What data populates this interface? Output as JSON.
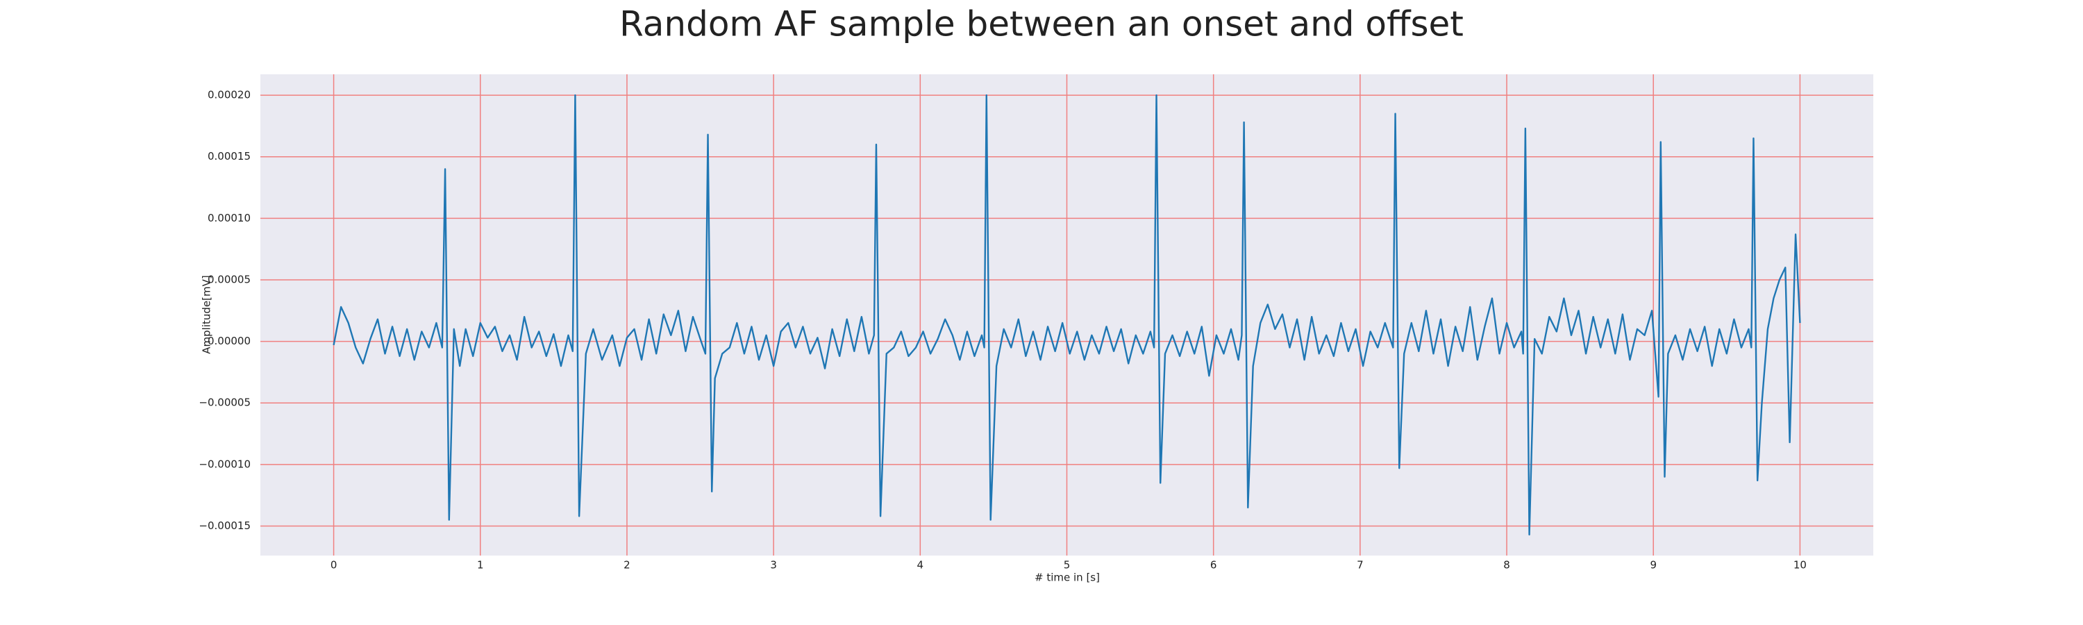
{
  "chart_data": {
    "type": "line",
    "title": "Random AF sample between an onset and offset",
    "xlabel": "# time in [s]",
    "ylabel": "Amplitude[mV]",
    "color": "#1f77b4",
    "grid": true,
    "grid_color": "#f08080",
    "xlim": [
      -0.5,
      10.5
    ],
    "ylim": [
      -0.000174,
      0.000217
    ],
    "xticks": [
      0,
      1,
      2,
      3,
      4,
      5,
      6,
      7,
      8,
      9,
      10
    ],
    "yticks": [
      {
        "value": -0.00015,
        "label": "−0.00015"
      },
      {
        "value": -0.0001,
        "label": "−0.00010"
      },
      {
        "value": -5e-05,
        "label": "−0.00005"
      },
      {
        "value": 0,
        "label": "0.00000"
      },
      {
        "value": 5e-05,
        "label": "0.00005"
      },
      {
        "value": 0.0001,
        "label": "0.00010"
      },
      {
        "value": 0.00015,
        "label": "0.00015"
      },
      {
        "value": 0.0002,
        "label": "0.00020"
      }
    ],
    "x": [
      0.0,
      0.05,
      0.1,
      0.15,
      0.2,
      0.25,
      0.3,
      0.35,
      0.4,
      0.45,
      0.5,
      0.55,
      0.6,
      0.65,
      0.7,
      0.74,
      0.76,
      0.787,
      0.82,
      0.86,
      0.9,
      0.95,
      1.0,
      1.05,
      1.1,
      1.15,
      1.2,
      1.25,
      1.3,
      1.35,
      1.4,
      1.45,
      1.5,
      1.55,
      1.6,
      1.63,
      1.647,
      1.674,
      1.72,
      1.77,
      1.83,
      1.9,
      1.95,
      2.0,
      2.05,
      2.1,
      2.15,
      2.2,
      2.25,
      2.3,
      2.35,
      2.4,
      2.45,
      2.5,
      2.535,
      2.552,
      2.579,
      2.6,
      2.65,
      2.7,
      2.75,
      2.8,
      2.85,
      2.9,
      2.95,
      3.0,
      3.05,
      3.1,
      3.15,
      3.2,
      3.25,
      3.3,
      3.35,
      3.4,
      3.45,
      3.5,
      3.55,
      3.6,
      3.65,
      3.685,
      3.7,
      3.729,
      3.77,
      3.82,
      3.87,
      3.92,
      3.97,
      4.02,
      4.07,
      4.12,
      4.17,
      4.22,
      4.27,
      4.32,
      4.37,
      4.42,
      4.437,
      4.452,
      4.48,
      4.52,
      4.57,
      4.62,
      4.67,
      4.72,
      4.77,
      4.82,
      4.87,
      4.92,
      4.97,
      5.02,
      5.07,
      5.12,
      5.17,
      5.22,
      5.27,
      5.32,
      5.37,
      5.42,
      5.47,
      5.52,
      5.57,
      5.595,
      5.611,
      5.638,
      5.67,
      5.72,
      5.77,
      5.82,
      5.87,
      5.92,
      5.97,
      6.02,
      6.07,
      6.12,
      6.17,
      6.193,
      6.208,
      6.235,
      6.27,
      6.32,
      6.37,
      6.42,
      6.47,
      6.52,
      6.57,
      6.62,
      6.67,
      6.72,
      6.77,
      6.82,
      6.87,
      6.92,
      6.97,
      7.02,
      7.07,
      7.12,
      7.17,
      7.225,
      7.24,
      7.267,
      7.3,
      7.35,
      7.4,
      7.45,
      7.5,
      7.55,
      7.6,
      7.65,
      7.7,
      7.75,
      7.8,
      7.85,
      7.9,
      7.95,
      8.0,
      8.05,
      8.1,
      8.112,
      8.127,
      8.154,
      8.19,
      8.24,
      8.29,
      8.34,
      8.39,
      8.44,
      8.49,
      8.54,
      8.59,
      8.64,
      8.69,
      8.74,
      8.79,
      8.84,
      8.89,
      8.94,
      8.99,
      9.035,
      9.05,
      9.077,
      9.1,
      9.15,
      9.2,
      9.25,
      9.3,
      9.35,
      9.4,
      9.45,
      9.5,
      9.55,
      9.6,
      9.65,
      9.668,
      9.683,
      9.71,
      9.74,
      9.78,
      9.82,
      9.86,
      9.9,
      9.93,
      9.97,
      10.0
    ],
    "values": [
      -3e-06,
      2.8e-05,
      1.5e-05,
      -5e-06,
      -1.8e-05,
      2e-06,
      1.8e-05,
      -1e-05,
      1.2e-05,
      -1.2e-05,
      1e-05,
      -1.5e-05,
      8e-06,
      -5e-06,
      1.5e-05,
      -5e-06,
      0.00014,
      -0.000145,
      1e-05,
      -2e-05,
      1e-05,
      -1.2e-05,
      1.5e-05,
      3e-06,
      1.2e-05,
      -8e-06,
      5e-06,
      -1.5e-05,
      2e-05,
      -5e-06,
      8e-06,
      -1.2e-05,
      6e-06,
      -2e-05,
      5e-06,
      -8e-06,
      0.0002,
      -0.000142,
      -1e-05,
      1e-05,
      -1.5e-05,
      5e-06,
      -2e-05,
      3e-06,
      1e-05,
      -1.5e-05,
      1.8e-05,
      -1e-05,
      2.2e-05,
      5e-06,
      2.5e-05,
      -8e-06,
      2e-05,
      2e-06,
      -1e-05,
      0.000168,
      -0.000122,
      -3e-05,
      -1e-05,
      -5e-06,
      1.5e-05,
      -1e-05,
      1.2e-05,
      -1.5e-05,
      5e-06,
      -2e-05,
      8e-06,
      1.5e-05,
      -5e-06,
      1.2e-05,
      -1e-05,
      3e-06,
      -2.2e-05,
      1e-05,
      -1.2e-05,
      1.8e-05,
      -8e-06,
      2e-05,
      -1e-05,
      5e-06,
      0.00016,
      -0.000142,
      -1e-05,
      -5e-06,
      8e-06,
      -1.2e-05,
      -5e-06,
      8e-06,
      -1e-05,
      2e-06,
      1.8e-05,
      5e-06,
      -1.5e-05,
      8e-06,
      -1.2e-05,
      5e-06,
      -5e-06,
      0.0002,
      -0.000145,
      -2e-05,
      1e-05,
      -5e-06,
      1.8e-05,
      -1.2e-05,
      8e-06,
      -1.5e-05,
      1.2e-05,
      -8e-06,
      1.5e-05,
      -1e-05,
      8e-06,
      -1.5e-05,
      5e-06,
      -1e-05,
      1.2e-05,
      -8e-06,
      1e-05,
      -1.8e-05,
      5e-06,
      -1e-05,
      8e-06,
      -5e-06,
      0.0002,
      -0.000115,
      -1e-05,
      5e-06,
      -1.2e-05,
      8e-06,
      -1e-05,
      1.2e-05,
      -2.8e-05,
      5e-06,
      -1e-05,
      1e-05,
      -1.5e-05,
      5e-06,
      0.000178,
      -0.000135,
      -2e-05,
      1.5e-05,
      3e-05,
      1e-05,
      2.2e-05,
      -5e-06,
      1.8e-05,
      -1.5e-05,
      2e-05,
      -1e-05,
      5e-06,
      -1.2e-05,
      1.5e-05,
      -8e-06,
      1e-05,
      -2e-05,
      8e-06,
      -5e-06,
      1.5e-05,
      -5e-06,
      0.000185,
      -0.000103,
      -1e-05,
      1.5e-05,
      -8e-06,
      2.5e-05,
      -1e-05,
      1.8e-05,
      -2e-05,
      1.2e-05,
      -8e-06,
      2.8e-05,
      -1.5e-05,
      1.2e-05,
      3.5e-05,
      -1e-05,
      1.5e-05,
      -5e-06,
      8e-06,
      -1e-05,
      0.000173,
      -0.000157,
      2e-06,
      -1e-05,
      2e-05,
      8e-06,
      3.5e-05,
      5e-06,
      2.5e-05,
      -1e-05,
      2e-05,
      -5e-06,
      1.8e-05,
      -1e-05,
      2.2e-05,
      -1.5e-05,
      1e-05,
      5e-06,
      2.5e-05,
      -4.5e-05,
      0.000162,
      -0.00011,
      -1e-05,
      5e-06,
      -1.5e-05,
      1e-05,
      -8e-06,
      1.2e-05,
      -2e-05,
      1e-05,
      -1e-05,
      1.8e-05,
      -5e-06,
      1e-05,
      -5e-06,
      0.000165,
      -0.000113,
      -5e-05,
      1e-05,
      3.5e-05,
      5e-05,
      6e-05,
      -8.2e-05,
      8.7e-05,
      1.5e-05
    ]
  }
}
